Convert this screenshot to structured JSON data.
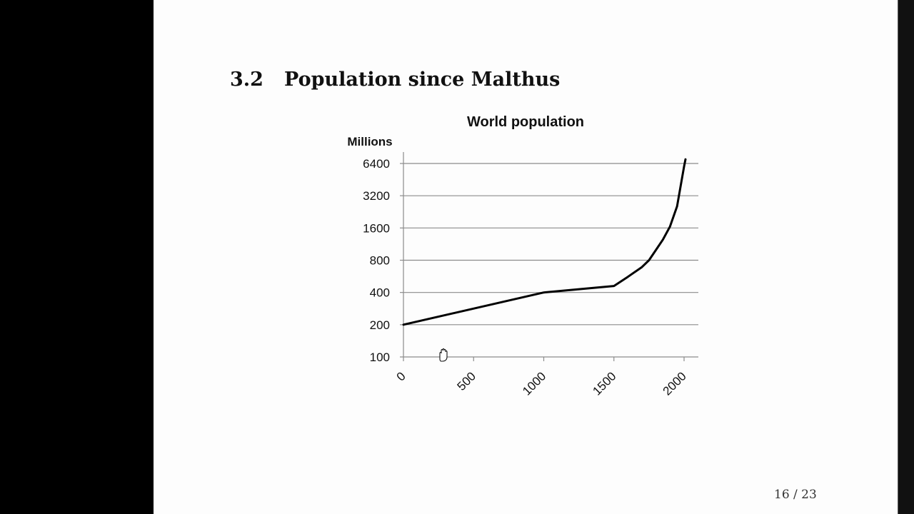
{
  "slide": {
    "section_number": "3.2",
    "section_title": "Population since Malthus",
    "page_counter": "16 / 23"
  },
  "chart_data": {
    "type": "line",
    "title": "World population",
    "ylabel": "Millions",
    "xlabel": "",
    "y_scale": "log2",
    "ylim": [
      100,
      6400
    ],
    "xlim": [
      0,
      2000
    ],
    "y_ticks": [
      100,
      200,
      400,
      800,
      1600,
      3200,
      6400
    ],
    "x_ticks": [
      0,
      500,
      1000,
      1500,
      2000
    ],
    "grid": true,
    "legend": "none",
    "series": [
      {
        "x": [
          0,
          1000,
          1500,
          1600,
          1700,
          1750,
          1800,
          1850,
          1900,
          1950,
          2000,
          2010
        ],
        "values": [
          200,
          400,
          460,
          560,
          690,
          800,
          1000,
          1250,
          1650,
          2550,
          6000,
          7000
        ]
      }
    ],
    "colors": {
      "line": "#000000",
      "grid": "#8c8c8c",
      "axis": "#8c8c8c"
    }
  },
  "cursor_icon": "hand-cursor-icon"
}
